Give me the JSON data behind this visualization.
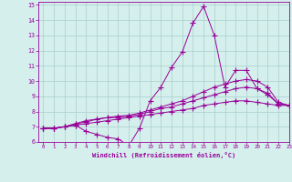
{
  "xlabel": "Windchill (Refroidissement éolien,°C)",
  "ylabel": "",
  "xlim": [
    -0.5,
    23
  ],
  "ylim": [
    6,
    15.2
  ],
  "xticks": [
    0,
    1,
    2,
    3,
    4,
    5,
    6,
    7,
    8,
    9,
    10,
    11,
    12,
    13,
    14,
    15,
    16,
    17,
    18,
    19,
    20,
    21,
    22,
    23
  ],
  "yticks": [
    6,
    7,
    8,
    9,
    10,
    11,
    12,
    13,
    14,
    15
  ],
  "background_color": "#d4efec",
  "grid_color": "#aacfcc",
  "line_color": "#990099",
  "line1_x": [
    0,
    1,
    2,
    3,
    4,
    5,
    6,
    7,
    8,
    9,
    10,
    11,
    12,
    13,
    14,
    15,
    16,
    17,
    18,
    19,
    20,
    21,
    22,
    23
  ],
  "line1_y": [
    6.9,
    6.9,
    7.0,
    7.1,
    6.7,
    6.5,
    6.3,
    6.2,
    5.75,
    6.9,
    8.7,
    9.6,
    10.9,
    11.9,
    13.8,
    14.9,
    13.0,
    9.6,
    10.7,
    10.7,
    9.5,
    9.2,
    8.5,
    8.4
  ],
  "line2_x": [
    0,
    1,
    2,
    3,
    4,
    5,
    6,
    7,
    8,
    9,
    10,
    11,
    12,
    13,
    14,
    15,
    16,
    17,
    18,
    19,
    20,
    21,
    22,
    23
  ],
  "line2_y": [
    6.9,
    6.9,
    7.0,
    7.2,
    7.4,
    7.5,
    7.6,
    7.7,
    7.75,
    7.9,
    8.1,
    8.3,
    8.5,
    8.7,
    9.0,
    9.3,
    9.6,
    9.8,
    10.0,
    10.1,
    10.0,
    9.6,
    8.6,
    8.4
  ],
  "line3_x": [
    0,
    1,
    2,
    3,
    4,
    5,
    6,
    7,
    8,
    9,
    10,
    11,
    12,
    13,
    14,
    15,
    16,
    17,
    18,
    19,
    20,
    21,
    22,
    23
  ],
  "line3_y": [
    6.9,
    6.9,
    7.0,
    7.2,
    7.3,
    7.5,
    7.6,
    7.6,
    7.7,
    7.8,
    8.0,
    8.2,
    8.3,
    8.5,
    8.7,
    8.9,
    9.1,
    9.3,
    9.5,
    9.6,
    9.5,
    9.1,
    8.5,
    8.4
  ],
  "line4_x": [
    0,
    1,
    2,
    3,
    4,
    5,
    6,
    7,
    8,
    9,
    10,
    11,
    12,
    13,
    14,
    15,
    16,
    17,
    18,
    19,
    20,
    21,
    22,
    23
  ],
  "line4_y": [
    6.9,
    6.9,
    7.0,
    7.1,
    7.2,
    7.3,
    7.4,
    7.5,
    7.6,
    7.7,
    7.8,
    7.9,
    8.0,
    8.1,
    8.2,
    8.4,
    8.5,
    8.6,
    8.7,
    8.7,
    8.6,
    8.5,
    8.4,
    8.4
  ]
}
